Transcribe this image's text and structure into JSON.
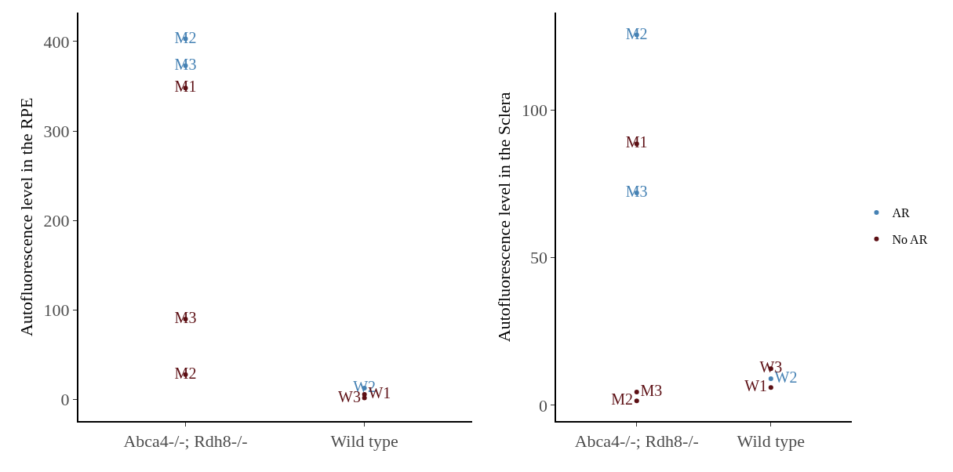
{
  "chart_data": [
    {
      "type": "scatter",
      "ylabel": "Autofluorescence level in the RPE",
      "categories": [
        "Abca4-/-; Rdh8-/-",
        "Wild type"
      ],
      "ylim": [
        -24,
        432
      ],
      "yticks": [
        0,
        100,
        200,
        300,
        400
      ],
      "grid": false,
      "legend": "right",
      "marker": "circle",
      "series": [
        {
          "name": "AR",
          "color": "#4682b4",
          "x": [
            "Abca4-/-; Rdh8-/-",
            "Abca4-/-; Rdh8-/-",
            "Wild type"
          ],
          "values": [
            373,
            403,
            13
          ],
          "value_labels": [
            "M3",
            "M2",
            "W2"
          ]
        },
        {
          "name": "No AR",
          "color": "#5c0f14",
          "x": [
            "Abca4-/-; Rdh8-/-",
            "Abca4-/-; Rdh8-/-",
            "Abca4-/-; Rdh8-/-",
            "Wild type",
            "Wild type"
          ],
          "values": [
            348,
            28,
            90,
            6,
            2
          ],
          "value_labels": [
            "M1",
            "M2",
            "M3",
            "W1",
            "W3"
          ]
        }
      ]
    },
    {
      "type": "scatter",
      "ylabel": "Autofluorescence level in the Sclera",
      "categories": [
        "Abca4-/-; Rdh8-/-",
        "Wild type"
      ],
      "ylim": [
        -5.4,
        133
      ],
      "yticks": [
        0,
        50,
        100
      ],
      "grid": false,
      "legend": "right",
      "marker": "circle",
      "series": [
        {
          "name": "AR",
          "color": "#4682b4",
          "x": [
            "Abca4-/-; Rdh8-/-",
            "Abca4-/-; Rdh8-/-",
            "Wild type"
          ],
          "values": [
            125.5,
            72,
            9
          ],
          "value_labels": [
            "M2",
            "M3",
            "W2"
          ]
        },
        {
          "name": "No AR",
          "color": "#5c0f14",
          "x": [
            "Abca4-/-; Rdh8-/-",
            "Abca4-/-; Rdh8-/-",
            "Abca4-/-; Rdh8-/-",
            "Wild type",
            "Wild type"
          ],
          "values": [
            88.6,
            1.5,
            4.5,
            6,
            12.4
          ],
          "value_labels": [
            "M1",
            "M2",
            "M3",
            "W1",
            "W3"
          ]
        }
      ]
    }
  ]
}
